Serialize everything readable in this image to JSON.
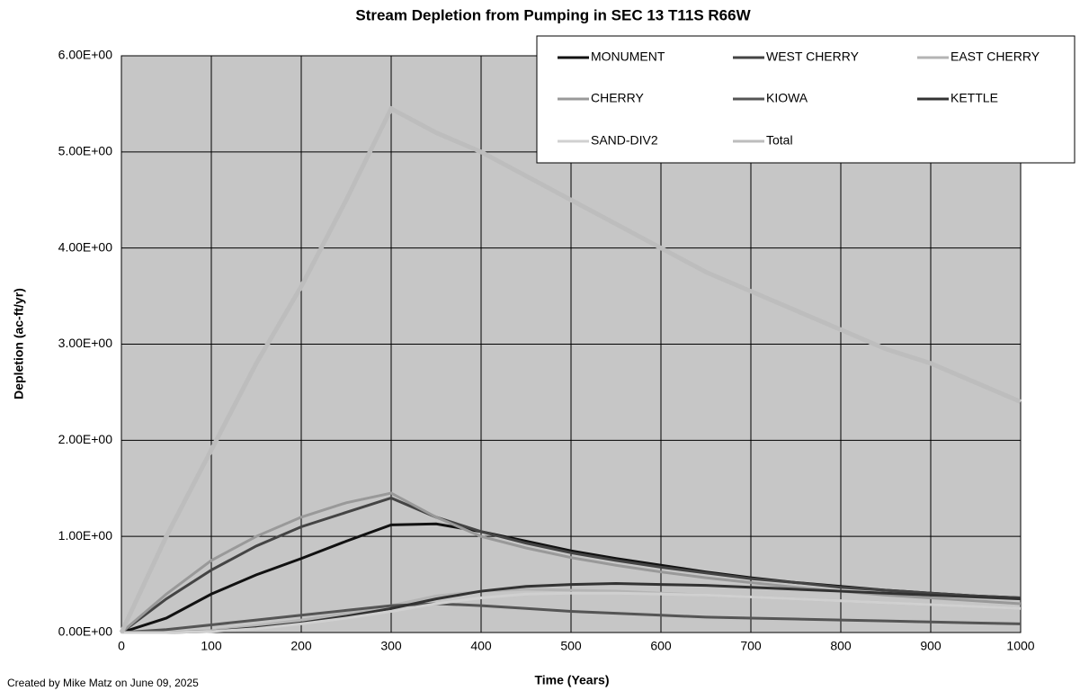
{
  "chart_data": {
    "type": "line",
    "title": "Stream Depletion from Pumping in SEC 13 T11S R66W",
    "xlabel": "Time (Years)",
    "ylabel": "Depletion (ac-ft/yr)",
    "footnote": "Created by Mike Matz on June 09, 2025",
    "x": [
      0,
      50,
      100,
      150,
      200,
      250,
      300,
      350,
      400,
      450,
      500,
      550,
      600,
      650,
      700,
      750,
      800,
      850,
      900,
      950,
      1000
    ],
    "xlim": [
      0,
      1000
    ],
    "xticks": [
      0,
      100,
      200,
      300,
      400,
      500,
      600,
      700,
      800,
      900,
      1000
    ],
    "ylim": [
      0,
      6
    ],
    "yticks": [
      {
        "value": 0,
        "label": "0.00E+00"
      },
      {
        "value": 1,
        "label": "1.00E+00"
      },
      {
        "value": 2,
        "label": "2.00E+00"
      },
      {
        "value": 3,
        "label": "3.00E+00"
      },
      {
        "value": 4,
        "label": "4.00E+00"
      },
      {
        "value": 5,
        "label": "5.00E+00"
      },
      {
        "value": 6,
        "label": "6.00E+00"
      }
    ],
    "grid": true,
    "legend": "top-right",
    "series": [
      {
        "name": "MONUMENT",
        "color": "#111111",
        "values": [
          0,
          0.15,
          0.4,
          0.6,
          0.77,
          0.95,
          1.12,
          1.13,
          1.05,
          0.95,
          0.85,
          0.77,
          0.7,
          0.63,
          0.57,
          0.52,
          0.48,
          0.44,
          0.41,
          0.38,
          0.36
        ]
      },
      {
        "name": "WEST CHERRY",
        "color": "#444444",
        "values": [
          0,
          0.35,
          0.65,
          0.9,
          1.1,
          1.25,
          1.4,
          1.2,
          1.05,
          0.93,
          0.83,
          0.75,
          0.68,
          0.62,
          0.56,
          0.52,
          0.47,
          0.44,
          0.41,
          0.38,
          0.36
        ]
      },
      {
        "name": "EAST CHERRY",
        "color": "#b4b4b4",
        "values": [
          0,
          0,
          0.02,
          0.07,
          0.13,
          0.2,
          0.28,
          0.38,
          0.43,
          0.45,
          0.44,
          0.43,
          0.41,
          0.39,
          0.37,
          0.35,
          0.33,
          0.31,
          0.29,
          0.27,
          0.25
        ]
      },
      {
        "name": "CHERRY",
        "color": "#999999",
        "values": [
          0,
          0.4,
          0.75,
          1.0,
          1.2,
          1.35,
          1.45,
          1.2,
          1.0,
          0.88,
          0.78,
          0.7,
          0.63,
          0.57,
          0.52,
          0.47,
          0.43,
          0.39,
          0.36,
          0.33,
          0.3
        ]
      },
      {
        "name": "KIOWA",
        "color": "#555555",
        "values": [
          0,
          0.03,
          0.08,
          0.13,
          0.18,
          0.23,
          0.28,
          0.3,
          0.28,
          0.25,
          0.22,
          0.2,
          0.18,
          0.16,
          0.15,
          0.14,
          0.13,
          0.12,
          0.11,
          0.1,
          0.09
        ]
      },
      {
        "name": "KETTLE",
        "color": "#333333",
        "values": [
          0,
          0,
          0.01,
          0.05,
          0.1,
          0.17,
          0.25,
          0.35,
          0.43,
          0.48,
          0.5,
          0.51,
          0.5,
          0.49,
          0.47,
          0.45,
          0.43,
          0.41,
          0.39,
          0.37,
          0.35
        ]
      },
      {
        "name": "SAND-DIV2",
        "color": "#d0d0d0",
        "values": [
          0,
          0,
          0.01,
          0.04,
          0.09,
          0.15,
          0.22,
          0.3,
          0.36,
          0.4,
          0.41,
          0.41,
          0.4,
          0.39,
          0.37,
          0.35,
          0.33,
          0.31,
          0.29,
          0.27,
          0.25
        ]
      },
      {
        "name": "Total",
        "color": "#bdbdbd",
        "values": [
          0,
          1.0,
          1.9,
          2.8,
          3.6,
          4.5,
          5.45,
          5.2,
          5.0,
          4.75,
          4.5,
          4.25,
          4.0,
          3.75,
          3.55,
          3.35,
          3.15,
          2.95,
          2.8,
          2.6,
          2.4
        ]
      }
    ]
  }
}
